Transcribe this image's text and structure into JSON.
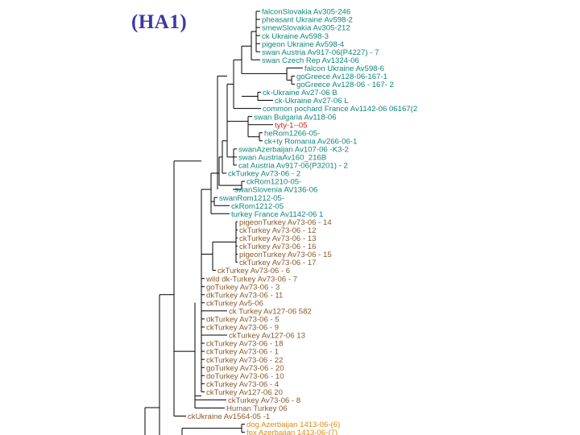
{
  "title": "(HA1)",
  "colors": {
    "teal": "#12867f",
    "brown": "#8b5a2b",
    "red": "#d81818",
    "orange": "#e08a10",
    "line": "#000000"
  },
  "leaves": [
    {
      "label": "falconSlovakia Av305-246",
      "color": "teal"
    },
    {
      "label": "pheasant Ukraine Av598-2",
      "color": "teal"
    },
    {
      "label": "smewSlovakia Av305-212",
      "color": "teal"
    },
    {
      "label": "ck Ukraine Av598-3",
      "color": "teal"
    },
    {
      "label": "pigeon Ukraine Av598-4",
      "color": "teal"
    },
    {
      "label": "swan Austria Av917-06(P4227) - 7",
      "color": "teal"
    },
    {
      "label": "swan Czech Rep Av1324-06",
      "color": "teal"
    },
    {
      "label": "falcon Ukraine Av598-6",
      "color": "teal"
    },
    {
      "label": "goGreece Av128-06-167-1",
      "color": "teal"
    },
    {
      "label": "goGreece Av128-06 - 167- 2",
      "color": "teal"
    },
    {
      "label": "ck-Ukraine Av27-06 B",
      "color": "teal"
    },
    {
      "label": "ck-Ukraine Av27-06 L",
      "color": "teal"
    },
    {
      "label": "common pochard France Av1142-06 06167(2",
      "color": "teal"
    },
    {
      "label": "swan Bulgaria Av118-06",
      "color": "teal"
    },
    {
      "label": "tyty-1--05",
      "color": "red"
    },
    {
      "label": "heRom1266-05-",
      "color": "teal"
    },
    {
      "label": "ck+ty Romania Av266-06-1",
      "color": "teal"
    },
    {
      "label": "swanAzerbaijan Av107-06 -K3-2",
      "color": "teal"
    },
    {
      "label": "swan AustriaAv160_216B",
      "color": "teal"
    },
    {
      "label": "cat Austria Av917-06(P3201) - 2",
      "color": "teal"
    },
    {
      "label": "ckTurkey Av73-06 - 2",
      "color": "teal"
    },
    {
      "label": "ckRom1210-05-",
      "color": "teal"
    },
    {
      "label": "swanSlovenia AV136-06",
      "color": "teal"
    },
    {
      "label": "swanRom1212-05-",
      "color": "teal"
    },
    {
      "label": "ckRom1212-05",
      "color": "teal"
    },
    {
      "label": "turkey France Av1142-06 1",
      "color": "teal"
    },
    {
      "label": "pigeonTurkey Av73-06 - 14",
      "color": "brown"
    },
    {
      "label": "ckTurkey Av73-06 - 12",
      "color": "brown"
    },
    {
      "label": "ckTurkey Av73-06 - 13",
      "color": "brown"
    },
    {
      "label": "ckTurkey Av73-06 - 16",
      "color": "brown"
    },
    {
      "label": "pigeonTurkey Av73-06 - 15",
      "color": "brown"
    },
    {
      "label": "ckTurkey Av73-06 - 17",
      "color": "brown"
    },
    {
      "label": "ckTurkey Av73-06 - 6",
      "color": "brown"
    },
    {
      "label": "wild dk-Turkey Av73-06 - 7",
      "color": "brown"
    },
    {
      "label": "goTurkey Av73-06 - 3",
      "color": "brown"
    },
    {
      "label": "dkTurkey Av73-06 - 11",
      "color": "brown"
    },
    {
      "label": "ckTurkey Av5-06",
      "color": "brown"
    },
    {
      "label": "ck Turkey Av127-06 582",
      "color": "brown"
    },
    {
      "label": "dkTurkey Av73-06 - 5",
      "color": "brown"
    },
    {
      "label": "ckTurkey Av73-06 - 9",
      "color": "brown"
    },
    {
      "label": "ckTurkey Av127-06 13",
      "color": "brown"
    },
    {
      "label": "ckTurkey Av73-06 - 18",
      "color": "brown"
    },
    {
      "label": "ckTurkey Av73-06 - 1",
      "color": "brown"
    },
    {
      "label": "ckTurkey Av73-06 - 22",
      "color": "brown"
    },
    {
      "label": "goTurkey Av73-06 - 20",
      "color": "brown"
    },
    {
      "label": "doTurkey Av73-06 - 10",
      "color": "brown"
    },
    {
      "label": "ckTurkey Av73-06 - 4",
      "color": "brown"
    },
    {
      "label": "ckTurkey Av127-06 20",
      "color": "brown"
    },
    {
      "label": "ckTurkey Av73-06 - 8",
      "color": "brown"
    },
    {
      "label": "Human Turkey 06",
      "color": "brown"
    },
    {
      "label": "ckUkraine Av1564-05 -1",
      "color": "brown"
    },
    {
      "label": "dog Azerbaijan 1413-06-(6)",
      "color": "orange"
    },
    {
      "label": "fox Azerbaijan 1413-06-(7)",
      "color": "orange"
    }
  ]
}
